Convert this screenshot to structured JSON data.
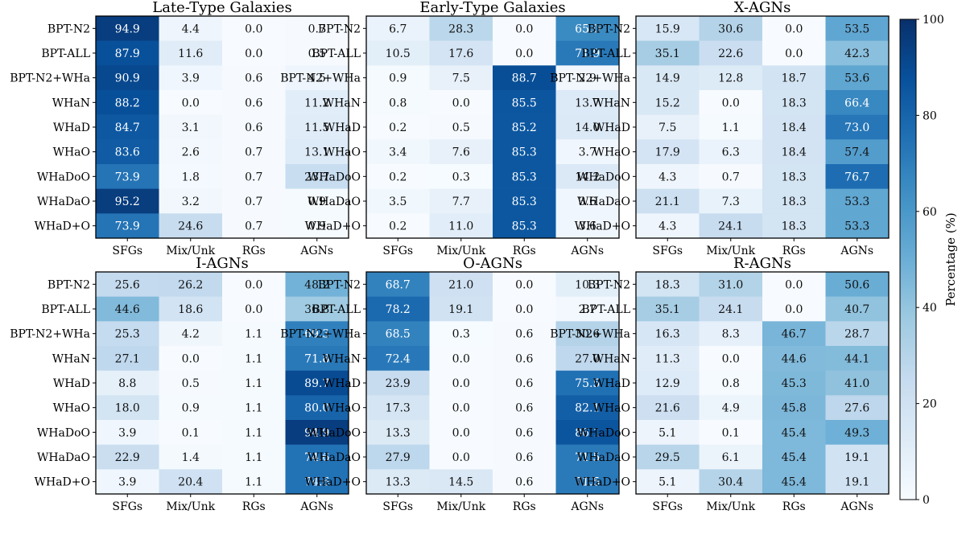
{
  "colorbar": {
    "label": "Percentage (%)",
    "ticks": [
      0,
      20,
      40,
      60,
      80,
      100
    ],
    "range": [
      0,
      100
    ],
    "colormap": "Blues",
    "color_low": "#f7fbff",
    "color_high": "#08306b"
  },
  "chart_data": [
    {
      "type": "heatmap",
      "title": "Late-Type Galaxies",
      "rows": [
        "BPT-N2",
        "BPT-ALL",
        "BPT-N2+WHa",
        "WHaN",
        "WHaD",
        "WHaO",
        "WHaDoO",
        "WHaDaO",
        "WHaD+O"
      ],
      "columns": [
        "SFGs",
        "Mix/Unk",
        "RGs",
        "AGNs"
      ],
      "values": [
        [
          "94.9",
          "4.4",
          "0.0",
          "0.7"
        ],
        [
          "87.9",
          "11.6",
          "0.0",
          "0.5"
        ],
        [
          "90.9",
          "3.9",
          "0.6",
          "4.5"
        ],
        [
          "88.2",
          "0.0",
          "0.6",
          "11.2"
        ],
        [
          "84.7",
          "3.1",
          "0.6",
          "11.5"
        ],
        [
          "83.6",
          "2.6",
          "0.7",
          "13.1"
        ],
        [
          "73.9",
          "1.8",
          "0.7",
          "23.7"
        ],
        [
          "95.2",
          "3.2",
          "0.7",
          "0.9"
        ],
        [
          "73.9",
          "24.6",
          "0.7",
          "0.9"
        ]
      ]
    },
    {
      "type": "heatmap",
      "title": "Early-Type Galaxies",
      "rows": [
        "BPT-N2",
        "BPT-ALL",
        "BPT-N2+WHa",
        "WHaN",
        "WHaD",
        "WHaO",
        "WHaDoO",
        "WHaDaO",
        "WHaD+O"
      ],
      "columns": [
        "SFGs",
        "Mix/Unk",
        "RGs",
        "AGNs"
      ],
      "values": [
        [
          "6.7",
          "28.3",
          "0.0",
          "65.0"
        ],
        [
          "10.5",
          "17.6",
          "0.0",
          "71.9"
        ],
        [
          "0.9",
          "7.5",
          "88.7",
          "2.9"
        ],
        [
          "0.8",
          "0.0",
          "85.5",
          "13.7"
        ],
        [
          "0.2",
          "0.5",
          "85.2",
          "14.0"
        ],
        [
          "3.4",
          "7.6",
          "85.3",
          "3.7"
        ],
        [
          "0.2",
          "0.3",
          "85.3",
          "14.2"
        ],
        [
          "3.5",
          "7.7",
          "85.3",
          "3.6"
        ],
        [
          "0.2",
          "11.0",
          "85.3",
          "3.6"
        ]
      ]
    },
    {
      "type": "heatmap",
      "title": "X-AGNs",
      "rows": [
        "BPT-N2",
        "BPT-ALL",
        "BPT-N2+WHa",
        "WHaN",
        "WHaD",
        "WHaO",
        "WHaDoO",
        "WHaDaO",
        "WHaD+O"
      ],
      "columns": [
        "SFGs",
        "Mix/Unk",
        "RGs",
        "AGNs"
      ],
      "values": [
        [
          "15.9",
          "30.6",
          "0.0",
          "53.5"
        ],
        [
          "35.1",
          "22.6",
          "0.0",
          "42.3"
        ],
        [
          "14.9",
          "12.8",
          "18.7",
          "53.6"
        ],
        [
          "15.2",
          "0.0",
          "18.3",
          "66.4"
        ],
        [
          "7.5",
          "1.1",
          "18.4",
          "73.0"
        ],
        [
          "17.9",
          "6.3",
          "18.4",
          "57.4"
        ],
        [
          "4.3",
          "0.7",
          "18.3",
          "76.7"
        ],
        [
          "21.1",
          "7.3",
          "18.3",
          "53.3"
        ],
        [
          "4.3",
          "24.1",
          "18.3",
          "53.3"
        ]
      ]
    },
    {
      "type": "heatmap",
      "title": "I-AGNs",
      "rows": [
        "BPT-N2",
        "BPT-ALL",
        "BPT-N2+WHa",
        "WHaN",
        "WHaD",
        "WHaO",
        "WHaDoO",
        "WHaDaO",
        "WHaD+O"
      ],
      "columns": [
        "SFGs",
        "Mix/Unk",
        "RGs",
        "AGNs"
      ],
      "values": [
        [
          "25.6",
          "26.2",
          "0.0",
          "48.2"
        ],
        [
          "44.6",
          "18.6",
          "0.0",
          "36.8"
        ],
        [
          "25.3",
          "4.2",
          "1.1",
          "69.3"
        ],
        [
          "27.1",
          "0.0",
          "1.1",
          "71.8"
        ],
        [
          "8.8",
          "0.5",
          "1.1",
          "89.7"
        ],
        [
          "18.0",
          "0.9",
          "1.1",
          "80.0"
        ],
        [
          "3.9",
          "0.1",
          "1.1",
          "94.9"
        ],
        [
          "22.9",
          "1.4",
          "1.1",
          "74.6"
        ],
        [
          "3.9",
          "20.4",
          "1.1",
          "74.6"
        ]
      ]
    },
    {
      "type": "heatmap",
      "title": "O-AGNs",
      "rows": [
        "BPT-N2",
        "BPT-ALL",
        "BPT-N2+WHa",
        "WHaN",
        "WHaD",
        "WHaO",
        "WHaDoO",
        "WHaDaO",
        "WHaD+O"
      ],
      "columns": [
        "SFGs",
        "Mix/Unk",
        "RGs",
        "AGNs"
      ],
      "values": [
        [
          "68.7",
          "21.0",
          "0.0",
          "10.3"
        ],
        [
          "78.2",
          "19.1",
          "0.0",
          "2.7"
        ],
        [
          "68.5",
          "0.3",
          "0.6",
          "30.6"
        ],
        [
          "72.4",
          "0.0",
          "0.6",
          "27.0"
        ],
        [
          "23.9",
          "0.0",
          "0.6",
          "75.5"
        ],
        [
          "17.3",
          "0.0",
          "0.6",
          "82.1"
        ],
        [
          "13.3",
          "0.0",
          "0.6",
          "86.1"
        ],
        [
          "27.9",
          "0.0",
          "0.6",
          "71.5"
        ],
        [
          "13.3",
          "14.5",
          "0.6",
          "71.5"
        ]
      ]
    },
    {
      "type": "heatmap",
      "title": "R-AGNs",
      "rows": [
        "BPT-N2",
        "BPT-ALL",
        "BPT-N2+WHa",
        "WHaN",
        "WHaD",
        "WHaO",
        "WHaDoO",
        "WHaDaO",
        "WHaD+O"
      ],
      "columns": [
        "SFGs",
        "Mix/Unk",
        "RGs",
        "AGNs"
      ],
      "values": [
        [
          "18.3",
          "31.0",
          "0.0",
          "50.6"
        ],
        [
          "35.1",
          "24.1",
          "0.0",
          "40.7"
        ],
        [
          "16.3",
          "8.3",
          "46.7",
          "28.7"
        ],
        [
          "11.3",
          "0.0",
          "44.6",
          "44.1"
        ],
        [
          "12.9",
          "0.8",
          "45.3",
          "41.0"
        ],
        [
          "21.6",
          "4.9",
          "45.8",
          "27.6"
        ],
        [
          "5.1",
          "0.1",
          "45.4",
          "49.3"
        ],
        [
          "29.5",
          "6.1",
          "45.4",
          "19.1"
        ],
        [
          "5.1",
          "30.4",
          "45.4",
          "19.1"
        ]
      ]
    }
  ]
}
